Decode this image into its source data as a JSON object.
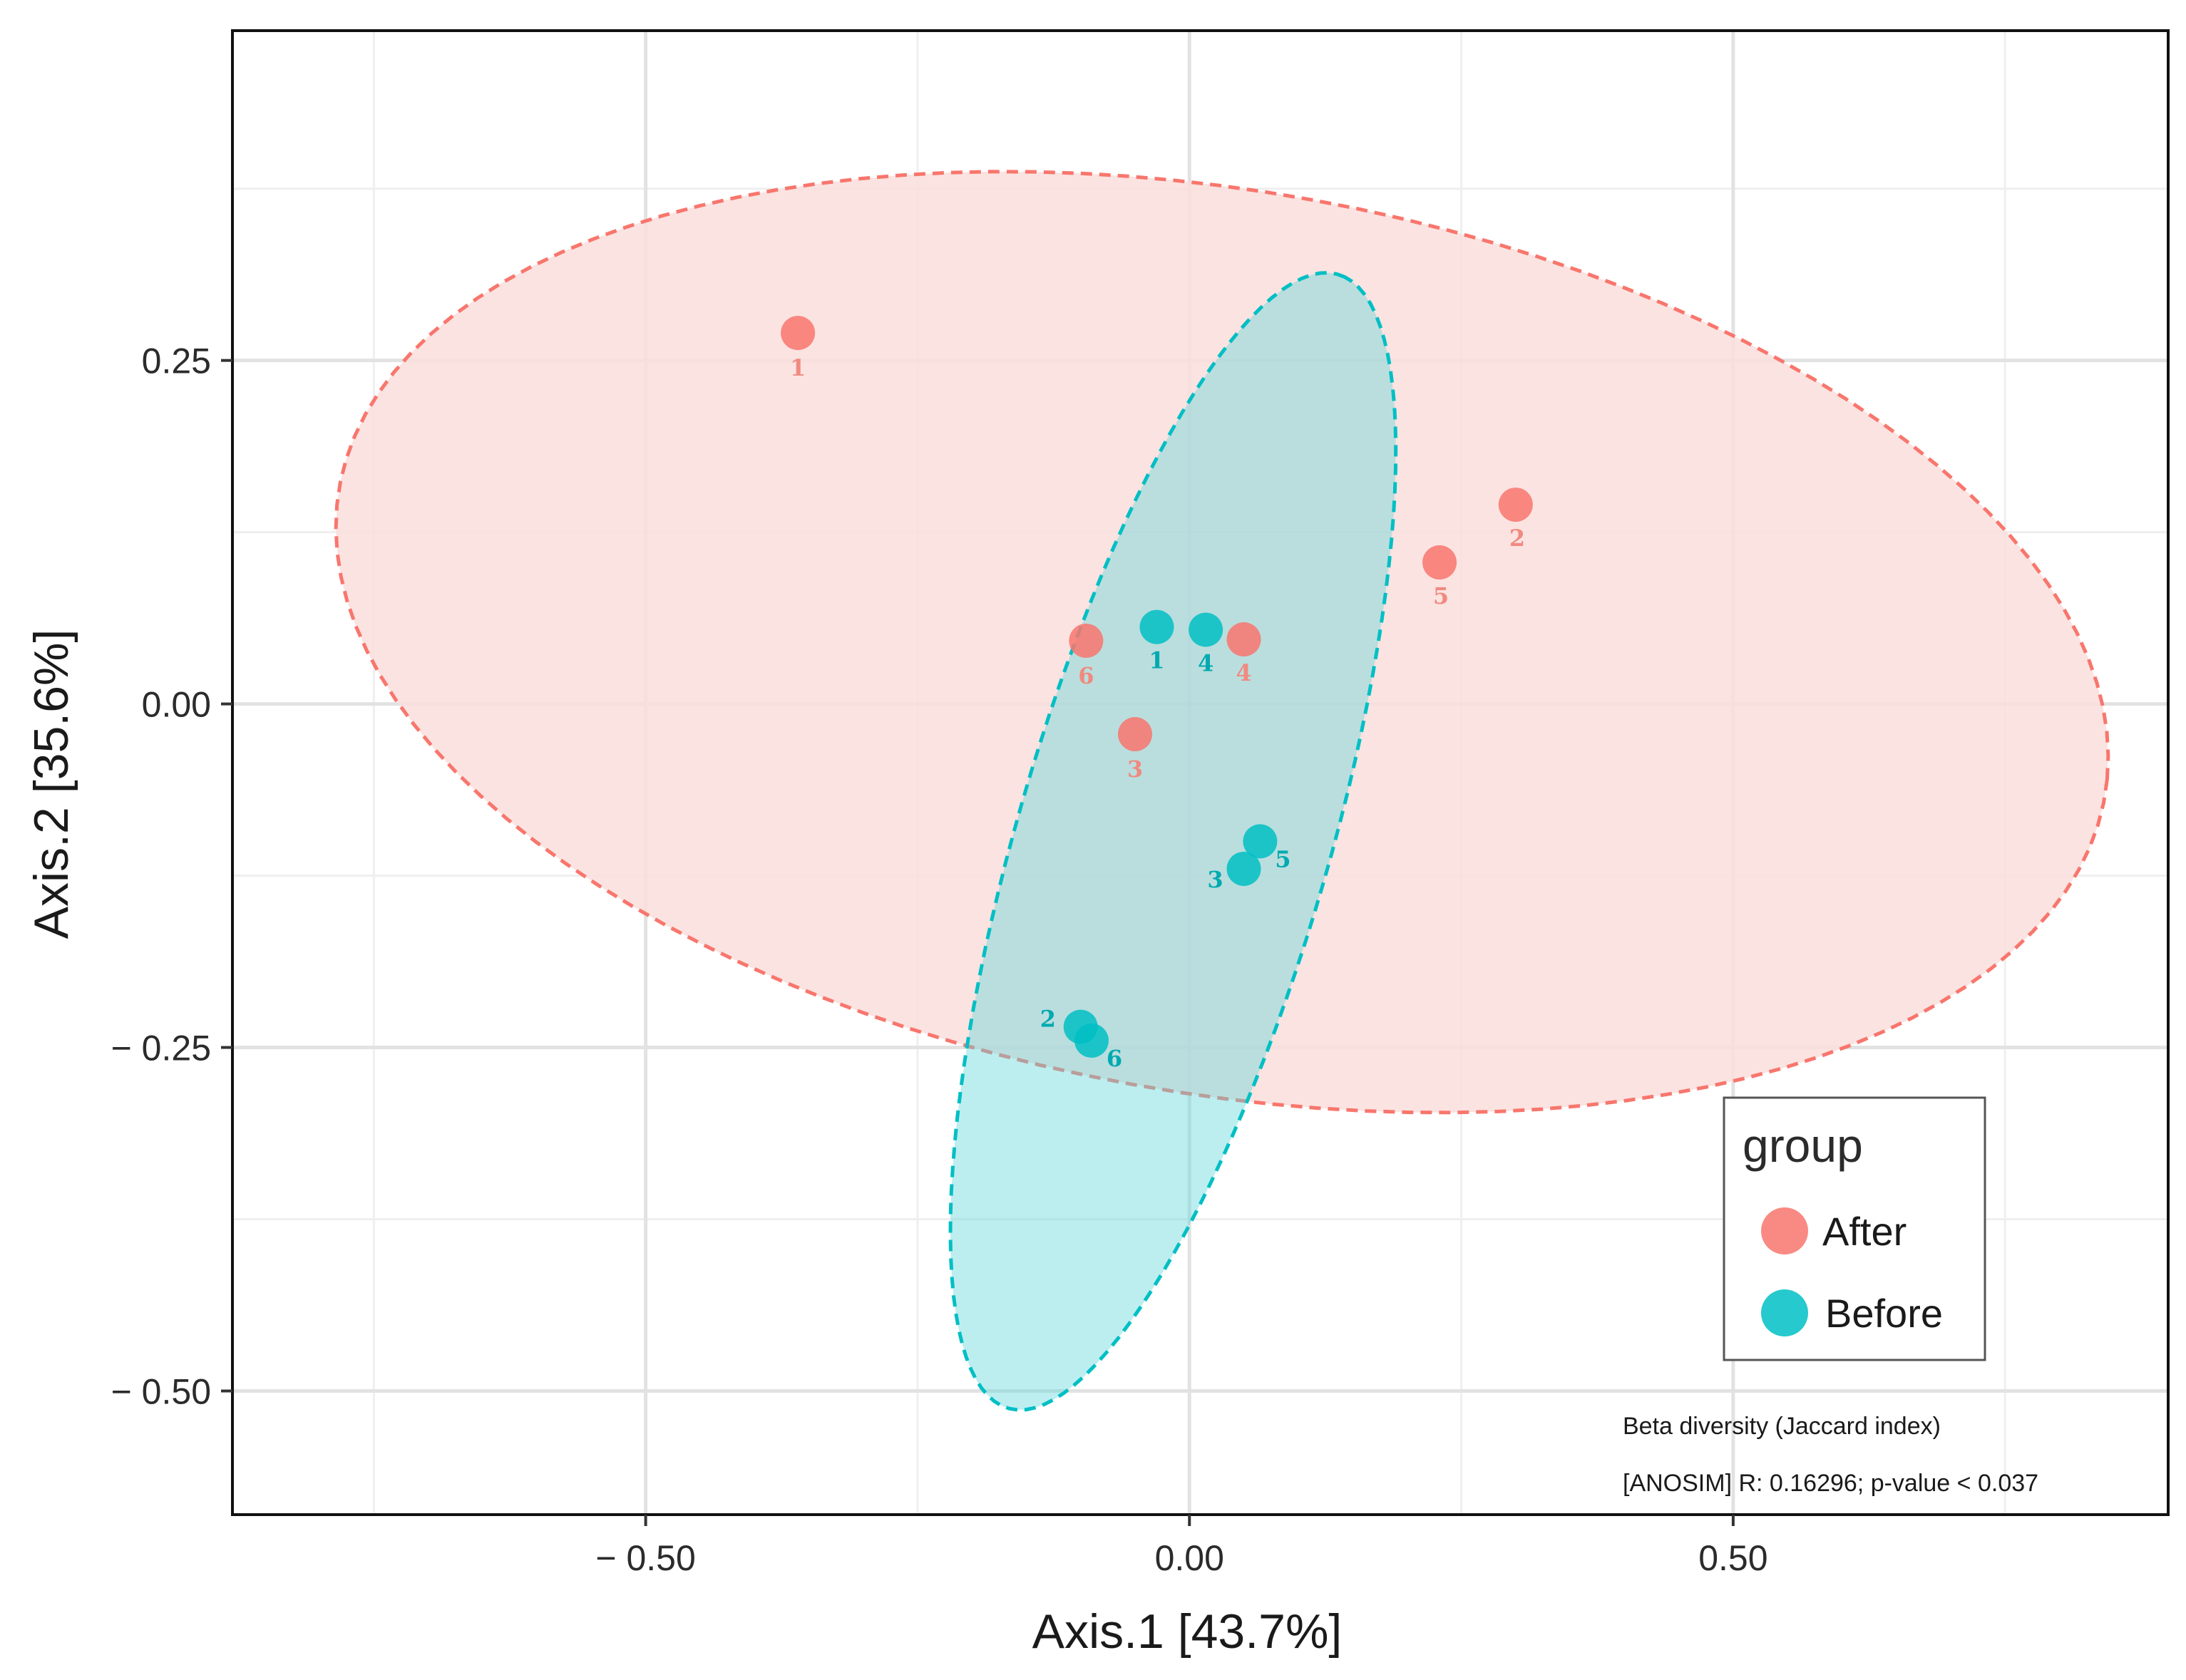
{
  "chart_data": {
    "type": "scatter",
    "title": "",
    "xlabel": "Axis.1 [43.7%]",
    "ylabel": "Axis.2 [35.6%]",
    "xlim": [
      -0.88,
      0.9
    ],
    "ylim": [
      -0.59,
      0.49
    ],
    "x_ticks": [
      {
        "value": -0.5,
        "label": "− 0.50"
      },
      {
        "value": 0.0,
        "label": "0.00"
      },
      {
        "value": 0.5,
        "label": "0.50"
      }
    ],
    "y_ticks": [
      {
        "value": 0.25,
        "label": "0.25"
      },
      {
        "value": 0.0,
        "label": "0.00"
      },
      {
        "value": -0.25,
        "label": "− 0.25"
      },
      {
        "value": -0.5,
        "label": "− 0.50"
      }
    ],
    "grid": true,
    "legend": {
      "title": "group",
      "placement": "bottom-right",
      "entries": [
        {
          "name": "After",
          "color": "#F8766D"
        },
        {
          "name": "Before",
          "color": "#00BFC4"
        }
      ]
    },
    "series": [
      {
        "name": "After",
        "color": "#F8766D",
        "points": [
          {
            "label": "1",
            "x": -0.36,
            "y": 0.27
          },
          {
            "label": "2",
            "x": 0.3,
            "y": 0.145
          },
          {
            "label": "3",
            "x": -0.05,
            "y": -0.022
          },
          {
            "label": "4",
            "x": 0.05,
            "y": 0.047
          },
          {
            "label": "5",
            "x": 0.23,
            "y": 0.103
          },
          {
            "label": "6",
            "x": -0.095,
            "y": 0.046
          }
        ],
        "ellipse": {
          "cx": 0.03,
          "cy": 0.045,
          "rx": 0.82,
          "ry": 0.33,
          "angle_deg": -7
        }
      },
      {
        "name": "Before",
        "color": "#00BFC4",
        "points": [
          {
            "label": "1",
            "x": -0.03,
            "y": 0.056
          },
          {
            "label": "2",
            "x": -0.1,
            "y": -0.235
          },
          {
            "label": "3",
            "x": 0.05,
            "y": -0.12
          },
          {
            "label": "4",
            "x": 0.015,
            "y": 0.054
          },
          {
            "label": "5",
            "x": 0.065,
            "y": -0.1
          },
          {
            "label": "6",
            "x": -0.09,
            "y": -0.245
          }
        ],
        "ellipse": {
          "cx": -0.015,
          "cy": -0.1,
          "rx": 0.44,
          "ry": 0.14,
          "angle_deg": 69
        }
      }
    ],
    "annotations": [
      "Beta diversity (Jaccard index)",
      "[ANOSIM] R: 0.16296; p-value < 0.037"
    ]
  }
}
